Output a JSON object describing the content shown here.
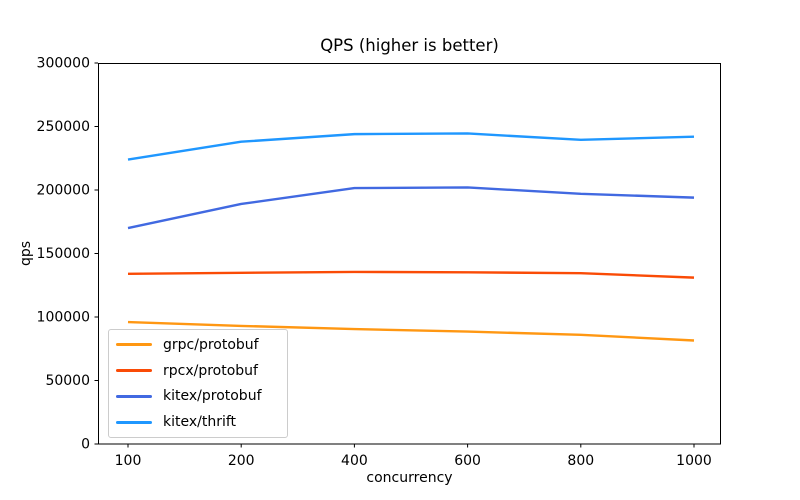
{
  "chart_data": {
    "type": "line",
    "title": "QPS (higher is better)",
    "xlabel": "concurrency",
    "ylabel": "qps",
    "categories": [
      100,
      200,
      400,
      600,
      800,
      1000
    ],
    "series": [
      {
        "name": "grpc/protobuf",
        "color": "#ff9712",
        "values": [
          96000,
          93000,
          90500,
          88500,
          86000,
          81500
        ]
      },
      {
        "name": "rpcx/protobuf",
        "color": "#fa4b06",
        "values": [
          134000,
          134800,
          135500,
          135200,
          134500,
          131000
        ]
      },
      {
        "name": "kitex/protobuf",
        "color": "#4169e1",
        "values": [
          170000,
          189000,
          201500,
          202000,
          197000,
          194000
        ]
      },
      {
        "name": "kitex/thrift",
        "color": "#1f97ff",
        "values": [
          224000,
          238000,
          244000,
          244500,
          239500,
          242000
        ]
      }
    ],
    "ylim": [
      0,
      300000
    ],
    "yticks": [
      0,
      50000,
      100000,
      150000,
      200000,
      250000,
      300000
    ],
    "grid": false,
    "legend_position": "lower-left",
    "axis_color": "#000000",
    "background_color": "#ffffff"
  }
}
